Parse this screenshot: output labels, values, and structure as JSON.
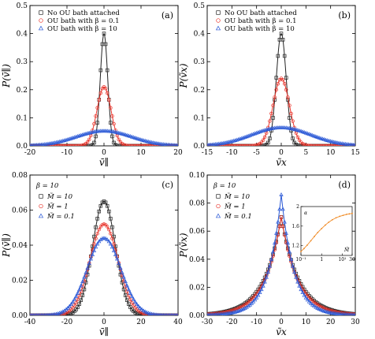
{
  "chart_data": [
    {
      "id": "a",
      "type": "scatter",
      "panel_label": "(a)",
      "xlabel": "v̄∥",
      "ylabel": "P(v̄∥)",
      "xlim": [
        -20,
        20
      ],
      "ylim": [
        0,
        0.5
      ],
      "xticks": [
        -20,
        -10,
        0,
        10,
        20
      ],
      "yticks": [
        0.0,
        0.1,
        0.2,
        0.3,
        0.4,
        0.5
      ],
      "ytick_decimals": 1,
      "legend_position": "top-left",
      "series": [
        {
          "name": "No OU bath attached",
          "color": "#222222",
          "marker": "square",
          "dist": "gauss",
          "peak": 0.4,
          "sigma": 1.0
        },
        {
          "name": "OU bath with β = 0.1",
          "color": "#e8332a",
          "marker": "circle",
          "dist": "gauss",
          "peak": 0.21,
          "sigma": 1.9
        },
        {
          "name": "OU bath with β = 10",
          "color": "#2b59d6",
          "marker": "triangle",
          "dist": "gauss",
          "peak": 0.053,
          "sigma": 7.5
        }
      ]
    },
    {
      "id": "b",
      "type": "scatter",
      "panel_label": "(b)",
      "xlabel": "ṽx",
      "ylabel": "P(ṽx)",
      "xlim": [
        -15,
        15
      ],
      "ylim": [
        0,
        0.5
      ],
      "xticks": [
        -15,
        -10,
        -5,
        0,
        5,
        10,
        15
      ],
      "yticks": [
        0.0,
        0.1,
        0.2,
        0.3,
        0.4,
        0.5
      ],
      "ytick_decimals": 1,
      "legend_position": "top-left",
      "series": [
        {
          "name": "No OU bath attached",
          "color": "#222222",
          "marker": "square",
          "dist": "gauss",
          "peak": 0.4,
          "sigma": 1.0
        },
        {
          "name": "OU bath with β = 0.1",
          "color": "#e8332a",
          "marker": "circle",
          "dist": "gauss",
          "peak": 0.24,
          "sigma": 1.65
        },
        {
          "name": "OU bath with β = 10",
          "color": "#2b59d6",
          "marker": "triangle",
          "dist": "gauss",
          "peak": 0.065,
          "sigma": 6.0
        }
      ]
    },
    {
      "id": "c",
      "type": "scatter",
      "panel_label": "(c)",
      "annotation": "β = 10",
      "xlabel": "v̄∥",
      "ylabel": "P(v̄∥)",
      "xlim": [
        -40,
        40
      ],
      "ylim": [
        0,
        0.08
      ],
      "xticks": [
        -40,
        -20,
        0,
        20,
        40
      ],
      "yticks": [
        0.0,
        0.02,
        0.04,
        0.06,
        0.08
      ],
      "ytick_decimals": 2,
      "legend_position": "top-left",
      "series": [
        {
          "name": "M̃ = 10",
          "color": "#222222",
          "marker": "square",
          "dist": "gauss",
          "peak": 0.065,
          "sigma": 6.2
        },
        {
          "name": "M̃ = 1",
          "color": "#e8332a",
          "marker": "circle",
          "dist": "gauss",
          "peak": 0.052,
          "sigma": 7.6
        },
        {
          "name": "M̃ = 0.1",
          "color": "#2b59d6",
          "marker": "triangle",
          "dist": "gauss",
          "peak": 0.044,
          "sigma": 9.0
        }
      ]
    },
    {
      "id": "d",
      "type": "scatter",
      "panel_label": "(d)",
      "annotation": "β = 10",
      "xlabel": "ṽx",
      "ylabel": "P(ṽx)",
      "xlim": [
        -30,
        30
      ],
      "ylim": [
        0,
        0.1
      ],
      "xticks": [
        -30,
        -20,
        -10,
        0,
        10,
        20,
        30
      ],
      "yticks": [
        0.0,
        0.02,
        0.04,
        0.06,
        0.08,
        0.1
      ],
      "ytick_decimals": 2,
      "legend_position": "top-left",
      "series": [
        {
          "name": "M̃ = 10",
          "color": "#222222",
          "marker": "square",
          "dist": "laplace",
          "peak": 0.07,
          "scale": 7.0
        },
        {
          "name": "M̃ = 1",
          "color": "#e8332a",
          "marker": "circle",
          "dist": "laplace",
          "peak": 0.07,
          "scale": 6.6
        },
        {
          "name": "M̃ = 0.1",
          "color": "#2b59d6",
          "marker": "triangle",
          "dist": "laplace",
          "peak": 0.086,
          "scale": 5.2
        }
      ],
      "inset": {
        "type": "line",
        "xlabel": "M̃",
        "ylabel": "α",
        "xscale": "log",
        "xlim": [
          0.1,
          30
        ],
        "ylim": [
          1,
          2
        ],
        "xticks": [
          0.1,
          1,
          10,
          30
        ],
        "xtick_labels": [
          "10⁻¹",
          "1",
          "10¹",
          "30"
        ],
        "yticks": [
          1.2,
          1.6,
          2
        ],
        "color": "#f08a24",
        "x": [
          0.1,
          0.14,
          0.2,
          0.3,
          0.45,
          0.65,
          1,
          1.5,
          2.2,
          3.3,
          5,
          7.5,
          11,
          16,
          22,
          30
        ],
        "y": [
          1.08,
          1.14,
          1.21,
          1.3,
          1.39,
          1.47,
          1.55,
          1.62,
          1.68,
          1.73,
          1.77,
          1.8,
          1.82,
          1.84,
          1.85,
          1.86
        ]
      }
    }
  ]
}
